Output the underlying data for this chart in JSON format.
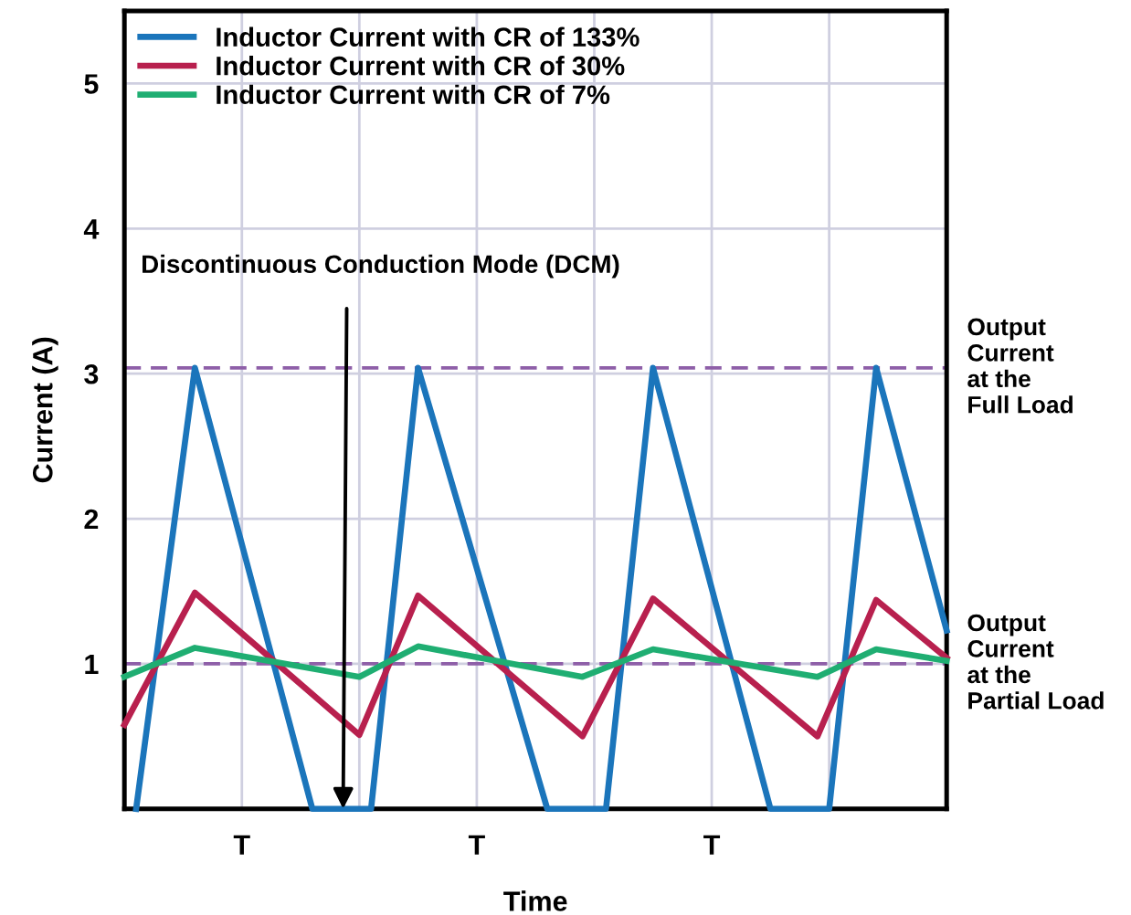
{
  "chart_data": {
    "type": "line",
    "xlabel": "Time",
    "ylabel": "Current (A)",
    "categories": [
      null,
      null,
      null,
      null,
      null,
      null,
      null,
      null,
      null,
      null,
      "T",
      null,
      null,
      null,
      null,
      null,
      null,
      null,
      null,
      null,
      null,
      null,
      null,
      null,
      null,
      null,
      null,
      null,
      null,
      null,
      "T",
      null,
      null,
      null,
      null,
      null,
      null,
      null,
      null,
      null,
      null,
      null,
      null,
      null,
      null,
      null,
      null,
      null,
      null,
      null,
      "T",
      null,
      null,
      null,
      null,
      null,
      null,
      null,
      null,
      null,
      null,
      null,
      null,
      null,
      null,
      null,
      null,
      null,
      null,
      null,
      null
    ],
    "ylim": [
      0,
      5.5
    ],
    "yticks": [
      1,
      2,
      3,
      4,
      5
    ],
    "grid": true,
    "legend": "top left",
    "marker": "none",
    "line_style": "solid",
    "series": [
      {
        "name": "Inductor Current with CR of 133%",
        "color": "#1b75bb",
        "values": [
          null,
          0,
          null,
          null,
          null,
          null,
          3.04,
          null,
          null,
          null,
          null,
          null,
          null,
          null,
          null,
          null,
          0,
          null,
          null,
          null,
          null,
          0,
          null,
          null,
          null,
          3.04,
          null,
          null,
          null,
          null,
          null,
          null,
          null,
          null,
          null,
          null,
          0,
          null,
          null,
          null,
          null,
          0,
          null,
          null,
          null,
          3.04,
          null,
          null,
          null,
          null,
          null,
          null,
          null,
          null,
          null,
          0,
          null,
          null,
          null,
          null,
          0,
          null,
          null,
          null,
          3.04,
          null,
          null,
          null,
          null,
          null,
          1.23
        ]
      },
      {
        "name": "Inductor Current with CR of 30%",
        "color": "#b8204e",
        "values": [
          0.58,
          null,
          null,
          null,
          null,
          null,
          1.49,
          null,
          null,
          null,
          null,
          null,
          null,
          null,
          null,
          null,
          null,
          null,
          null,
          null,
          0.51,
          null,
          null,
          null,
          null,
          1.47,
          null,
          null,
          null,
          null,
          null,
          null,
          null,
          null,
          null,
          null,
          null,
          null,
          null,
          0.5,
          null,
          null,
          null,
          null,
          null,
          1.45,
          null,
          null,
          null,
          null,
          null,
          null,
          null,
          null,
          null,
          null,
          null,
          null,
          null,
          0.5,
          null,
          null,
          null,
          null,
          1.44,
          null,
          null,
          null,
          null,
          null,
          1.04
        ]
      },
      {
        "name": "Inductor Current with CR of 7%",
        "color": "#1fae72",
        "values": [
          0.91,
          null,
          null,
          null,
          null,
          null,
          1.11,
          null,
          null,
          null,
          null,
          null,
          null,
          null,
          null,
          null,
          null,
          null,
          null,
          null,
          0.91,
          null,
          null,
          null,
          null,
          1.12,
          null,
          null,
          null,
          null,
          null,
          null,
          null,
          null,
          null,
          null,
          null,
          null,
          null,
          0.91,
          null,
          null,
          null,
          null,
          null,
          1.1,
          null,
          null,
          null,
          null,
          null,
          null,
          null,
          null,
          null,
          null,
          null,
          null,
          null,
          0.91,
          null,
          null,
          null,
          null,
          1.1,
          null,
          null,
          null,
          null,
          null,
          1.02
        ]
      }
    ],
    "ref_lines": [
      {
        "axis": "y",
        "value": 3.04,
        "label": "Output\nCurrent\nat the\nFull Load",
        "color": "#8e5fa8",
        "line_style": "dashed"
      },
      {
        "axis": "y",
        "value": 1.0,
        "label": "Output\nCurrent\nat the\nPartial Load",
        "color": "#8e5fa8",
        "line_style": "dashed"
      }
    ],
    "annotations": [
      "Discontinuous Conduction Mode (DCM)"
    ]
  }
}
